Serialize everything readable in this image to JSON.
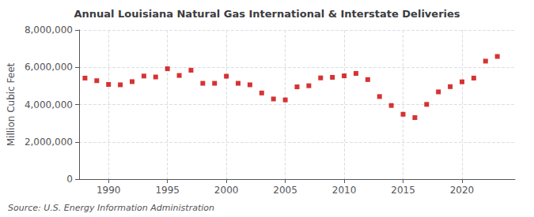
{
  "chart_data": {
    "type": "scatter",
    "title": "Annual Louisiana Natural Gas International & Interstate Deliveries",
    "ylabel": "Million Cubic Feet",
    "source": "Source: U.S. Energy Information Administration",
    "x": [
      1988,
      1989,
      1990,
      1991,
      1992,
      1993,
      1994,
      1995,
      1996,
      1997,
      1998,
      1999,
      2000,
      2001,
      2002,
      2003,
      2004,
      2005,
      2006,
      2007,
      2008,
      2009,
      2010,
      2011,
      2012,
      2013,
      2014,
      2015,
      2016,
      2017,
      2018,
      2019,
      2020,
      2021,
      2022,
      2023
    ],
    "values": [
      5420000,
      5280000,
      5080000,
      5060000,
      5230000,
      5530000,
      5480000,
      5920000,
      5560000,
      5840000,
      5140000,
      5140000,
      5520000,
      5140000,
      5060000,
      4620000,
      4300000,
      4250000,
      4950000,
      5010000,
      5430000,
      5460000,
      5540000,
      5670000,
      5340000,
      4430000,
      3950000,
      3480000,
      3300000,
      4010000,
      4680000,
      4960000,
      5220000,
      5420000,
      6330000,
      6580000
    ],
    "color": "#cc0000",
    "marker": "square",
    "xlim": [
      1987.5,
      2024.5
    ],
    "xticks": [
      1990,
      1995,
      2000,
      2005,
      2010,
      2015,
      2020
    ],
    "ylim": [
      0,
      8000000
    ],
    "yticks": [
      0,
      {
        "value": 2000000,
        "label": "2,000,000"
      },
      {
        "value": 4000000,
        "label": "4,000,000"
      },
      {
        "value": 6000000,
        "label": "6,000,000"
      },
      {
        "value": 8000000,
        "label": "8,000,000"
      }
    ],
    "grid": true
  }
}
